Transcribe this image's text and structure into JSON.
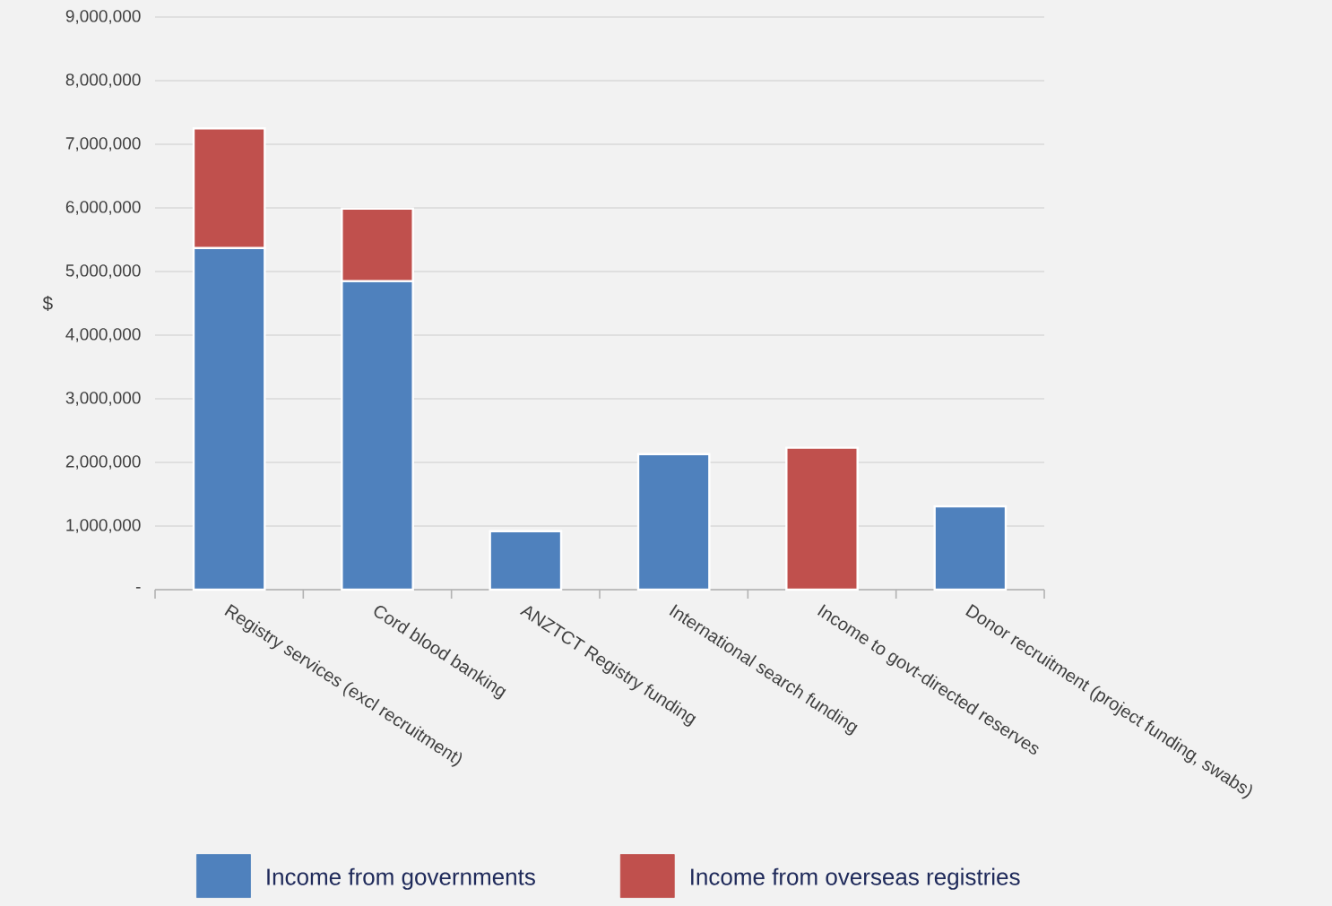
{
  "chart_data": {
    "type": "bar",
    "stacked": true,
    "ylabel": "$",
    "categories": [
      "Registry services (excl recruitment)",
      "Cord blood banking",
      "ANZTCT Registry funding",
      "International search funding",
      "Income to govt-directed reserves",
      "Donor recruitment (project funding, swabs)"
    ],
    "series": [
      {
        "name": "Income from governments",
        "color": "#4f81bd",
        "values": [
          5370000,
          4850000,
          920000,
          2130000,
          null,
          1310000
        ]
      },
      {
        "name": "Income from overseas registries",
        "color": "#c0504d",
        "values": [
          1880000,
          1140000,
          null,
          null,
          2230000,
          null
        ]
      }
    ],
    "ylim": [
      0,
      9000000
    ],
    "yticks": [
      {
        "value": 0,
        "label": "-"
      },
      {
        "value": 1000000,
        "label": "1,000,000"
      },
      {
        "value": 2000000,
        "label": "2,000,000"
      },
      {
        "value": 3000000,
        "label": "3,000,000"
      },
      {
        "value": 4000000,
        "label": "4,000,000"
      },
      {
        "value": 5000000,
        "label": "5,000,000"
      },
      {
        "value": 6000000,
        "label": "6,000,000"
      },
      {
        "value": 7000000,
        "label": "7,000,000"
      },
      {
        "value": 8000000,
        "label": "8,000,000"
      },
      {
        "value": 9000000,
        "label": "9,000,000"
      }
    ],
    "grid": "y",
    "legend": "bottom"
  }
}
